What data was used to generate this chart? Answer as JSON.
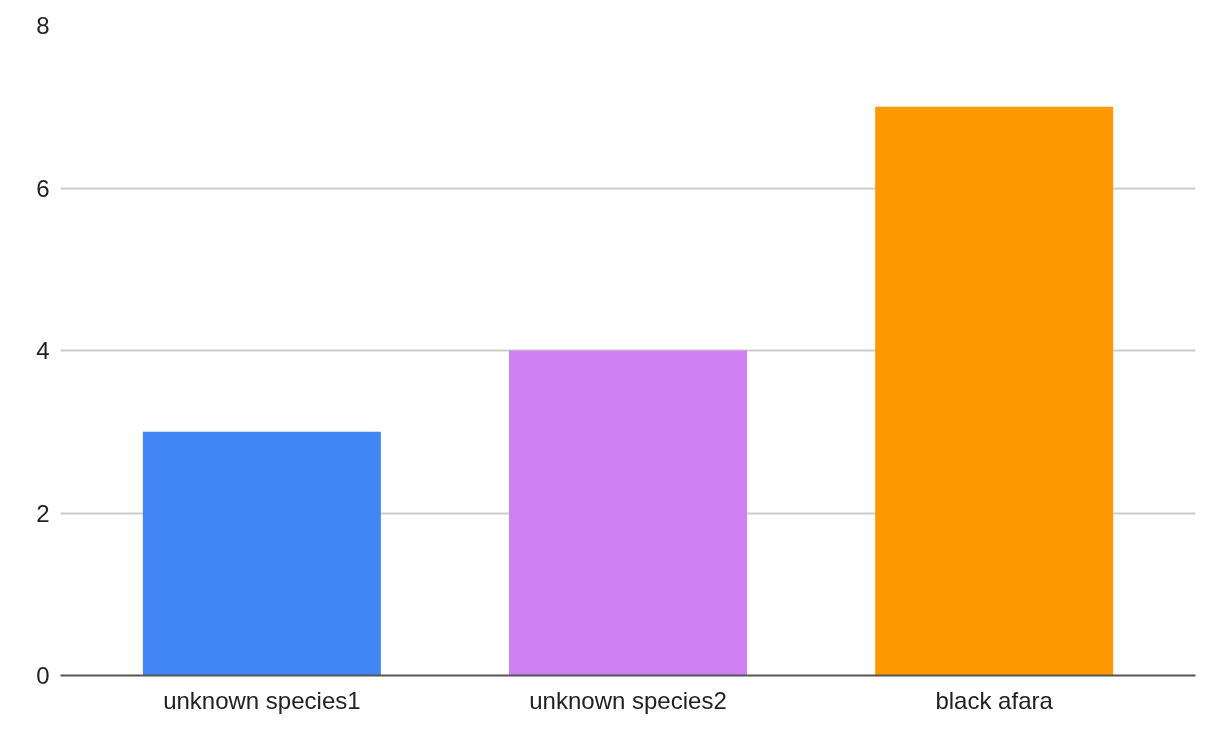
{
  "chart_data": {
    "type": "bar",
    "categories": [
      "unknown species1",
      "unknown species2",
      "black afara"
    ],
    "values": [
      3,
      4,
      7
    ],
    "colors": [
      "#4285f4",
      "#cf80f2",
      "#ff9900"
    ],
    "ylim": [
      0,
      8
    ],
    "yticks": [
      0,
      2,
      4,
      6,
      8
    ],
    "grid": "y"
  }
}
